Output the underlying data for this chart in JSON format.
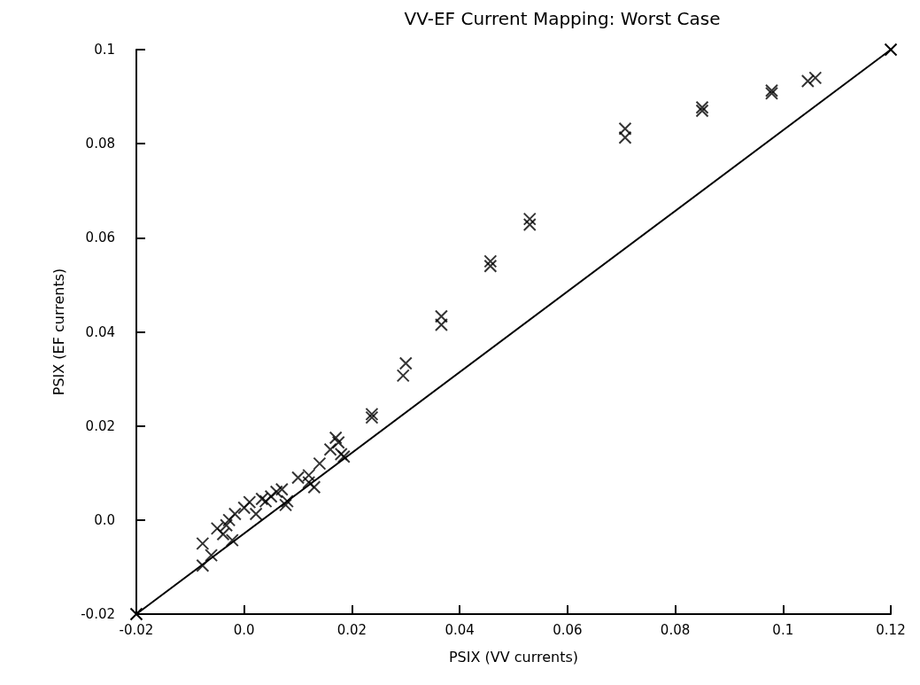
{
  "chart_data": {
    "type": "scatter",
    "title": "VV-EF Current Mapping: Worst Case",
    "xlabel": "PSIX (VV currents)",
    "ylabel": "PSIX (EF currents)",
    "xlim": [
      -0.02,
      0.12
    ],
    "ylim": [
      -0.02,
      0.1
    ],
    "xticks": [
      -0.02,
      {
        "value": 0,
        "label": "0.0"
      },
      0.02,
      0.04,
      0.06,
      0.08,
      {
        "value": 0.1,
        "label": "0.1"
      },
      0.12
    ],
    "yticks": [
      -0.02,
      {
        "value": 0,
        "label": "0.0"
      },
      0.02,
      0.04,
      0.06,
      0.08,
      {
        "value": 0.1,
        "label": "0.1"
      }
    ],
    "grid": false,
    "marker": "cross",
    "series": [
      {
        "color": "#000000",
        "x": [
          -0.0077,
          -0.0077,
          -0.005,
          -0.0061,
          -0.0039,
          -0.0033,
          -0.0028,
          -0.0022,
          -0.0017,
          0.0,
          0.001,
          0.0022,
          0.0033,
          0.0077,
          0.004,
          0.005,
          0.006,
          0.007,
          0.008,
          0.01,
          0.012,
          0.012,
          0.013,
          0.014,
          0.016,
          0.017,
          0.0175,
          0.018,
          0.0185,
          0.0237,
          0.0237,
          0.0295,
          0.03,
          0.0366,
          0.0366,
          0.0457,
          0.0457,
          0.053,
          0.053,
          0.0707,
          0.0707,
          0.085,
          0.085,
          0.0979,
          0.0979,
          0.1046,
          0.106
        ],
        "values": [
          -0.005,
          -0.0097,
          -0.0018,
          -0.0075,
          -0.003,
          -0.0011,
          0.0,
          -0.0043,
          0.0013,
          0.0026,
          0.0038,
          0.0013,
          0.0045,
          0.0032,
          0.004,
          0.005,
          0.006,
          0.0065,
          0.004,
          0.009,
          0.0095,
          0.008,
          0.007,
          0.012,
          0.015,
          0.0175,
          0.0165,
          0.014,
          0.0135,
          0.0225,
          0.0218,
          0.0307,
          0.0333,
          0.0433,
          0.0415,
          0.055,
          0.054,
          0.064,
          0.0628,
          0.0832,
          0.0813,
          0.0877,
          0.087,
          0.0913,
          0.0907,
          0.0933,
          0.094
        ]
      },
      {
        "type": "line",
        "color": "#000000",
        "x": [
          -0.02,
          0.12
        ],
        "values": [
          -0.02,
          0.1
        ],
        "marker": "cross",
        "line_style": "solid"
      }
    ]
  }
}
